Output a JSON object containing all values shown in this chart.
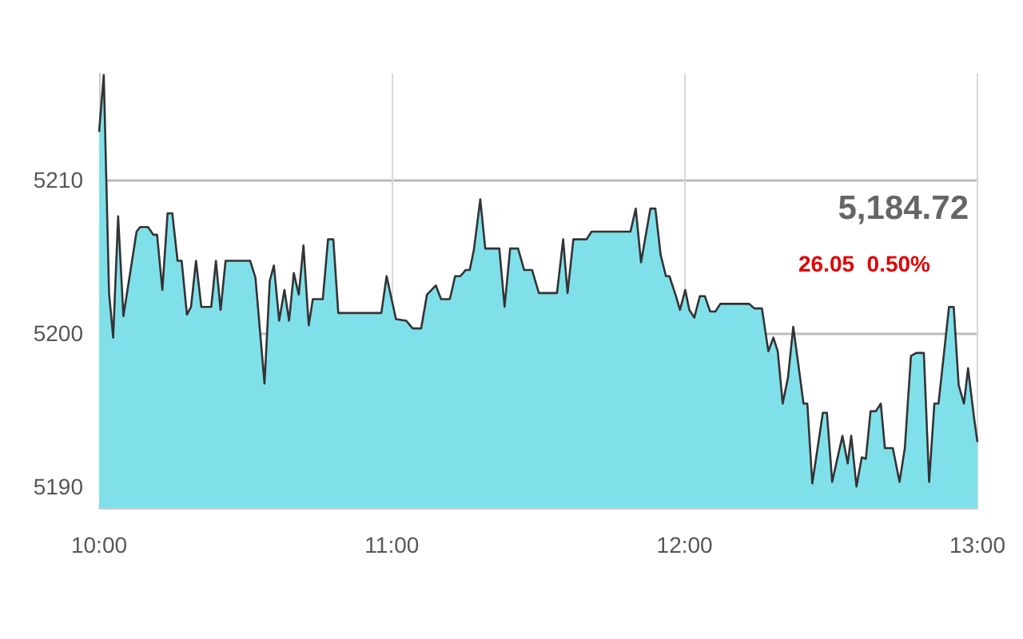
{
  "chart_data": {
    "type": "area",
    "annotations": [
      "5,184.72",
      "26.05  0.50%"
    ],
    "xlim": [
      10,
      13
    ],
    "xticks": [
      {
        "value": 10,
        "label": "10:00"
      },
      {
        "value": 11,
        "label": "11:00"
      },
      {
        "value": 12,
        "label": "12:00"
      },
      {
        "value": 13,
        "label": "13:00"
      }
    ],
    "ylim": [
      5188.6,
      5216.9
    ],
    "yticks": [
      5190,
      5200,
      5210
    ],
    "grid": true,
    "marker": "none",
    "series": [
      {
        "color": "#80e0ea",
        "x": [
          10.0,
          10.016,
          10.034,
          10.048,
          10.065,
          10.083,
          10.128,
          10.14,
          10.167,
          10.185,
          10.198,
          10.216,
          10.234,
          10.25,
          10.268,
          10.282,
          10.3,
          10.314,
          10.331,
          10.349,
          10.383,
          10.399,
          10.415,
          10.432,
          10.516,
          10.534,
          10.565,
          10.583,
          10.597,
          10.615,
          10.633,
          10.649,
          10.665,
          10.682,
          10.698,
          10.716,
          10.73,
          10.764,
          10.782,
          10.8,
          10.817,
          10.964,
          10.982,
          11.014,
          11.049,
          11.071,
          11.1,
          11.12,
          11.15,
          11.168,
          11.198,
          11.216,
          11.234,
          11.252,
          11.266,
          11.28,
          11.302,
          11.319,
          11.367,
          11.385,
          11.404,
          11.431,
          11.452,
          11.479,
          11.502,
          11.564,
          11.585,
          11.6,
          11.62,
          11.665,
          11.682,
          11.815,
          11.833,
          11.851,
          11.883,
          11.9,
          11.918,
          11.936,
          11.948,
          11.972,
          11.984,
          12.002,
          12.016,
          12.033,
          12.052,
          12.069,
          12.087,
          12.105,
          12.122,
          12.22,
          12.238,
          12.264,
          12.286,
          12.303,
          12.318,
          12.335,
          12.353,
          12.371,
          12.388,
          12.406,
          12.419,
          12.436,
          12.472,
          12.486,
          12.504,
          12.539,
          12.557,
          12.569,
          12.587,
          12.605,
          12.619,
          12.635,
          12.653,
          12.67,
          12.684,
          12.711,
          12.734,
          12.752,
          12.773,
          12.791,
          12.817,
          12.835,
          12.853,
          12.867,
          12.903,
          12.919,
          12.936,
          12.954,
          12.968,
          12.989,
          13.0
        ],
        "values": [
          5213.1,
          5216.8,
          5202.6,
          5199.7,
          5207.6,
          5201.1,
          5206.6,
          5206.9,
          5206.9,
          5206.4,
          5206.4,
          5202.8,
          5207.8,
          5207.8,
          5204.7,
          5204.7,
          5201.2,
          5201.7,
          5204.7,
          5201.7,
          5201.7,
          5204.7,
          5201.5,
          5204.7,
          5204.7,
          5203.6,
          5196.7,
          5203.4,
          5204.4,
          5200.8,
          5202.8,
          5200.8,
          5203.9,
          5202.5,
          5205.7,
          5200.5,
          5202.2,
          5202.2,
          5206.1,
          5206.1,
          5201.3,
          5201.3,
          5203.7,
          5200.9,
          5200.8,
          5200.3,
          5200.3,
          5202.5,
          5203.1,
          5202.2,
          5202.2,
          5203.7,
          5203.7,
          5204.1,
          5204.1,
          5205.4,
          5208.7,
          5205.5,
          5205.5,
          5201.7,
          5205.5,
          5205.5,
          5204.1,
          5204.1,
          5202.6,
          5202.6,
          5206.1,
          5202.6,
          5206.1,
          5206.1,
          5206.6,
          5206.6,
          5208.1,
          5204.6,
          5208.1,
          5208.1,
          5205.1,
          5203.7,
          5203.7,
          5202.3,
          5201.5,
          5202.8,
          5201.5,
          5201.0,
          5202.4,
          5202.4,
          5201.4,
          5201.4,
          5201.9,
          5201.9,
          5201.6,
          5201.6,
          5198.8,
          5199.7,
          5198.8,
          5195.4,
          5197.1,
          5200.4,
          5198.0,
          5195.4,
          5195.4,
          5190.2,
          5194.8,
          5194.8,
          5190.3,
          5193.3,
          5191.5,
          5193.3,
          5190.0,
          5191.9,
          5191.8,
          5194.9,
          5194.9,
          5195.4,
          5192.5,
          5192.5,
          5190.3,
          5192.5,
          5198.5,
          5198.7,
          5198.7,
          5190.3,
          5195.4,
          5195.4,
          5201.7,
          5201.7,
          5196.6,
          5195.4,
          5197.7,
          5194.4,
          5192.9
        ]
      }
    ]
  }
}
